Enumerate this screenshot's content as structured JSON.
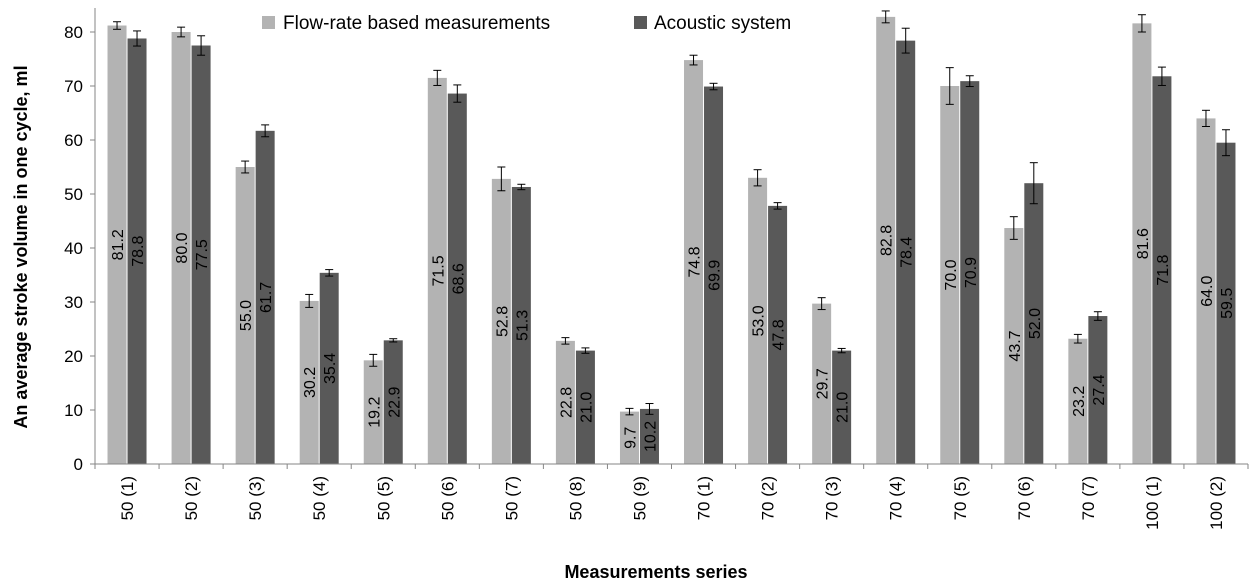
{
  "chart_data": {
    "type": "bar",
    "xlabel": "Measurements series",
    "ylabel": "An average stroke volume in one cycle, ml",
    "ylim": [
      0,
      85
    ],
    "yticks": [
      0,
      10,
      20,
      30,
      40,
      50,
      60,
      70,
      80
    ],
    "grid": false,
    "legend_position": "top",
    "categories": [
      "50 (1)",
      "50 (2)",
      "50 (3)",
      "50 (4)",
      "50 (5)",
      "50 (6)",
      "50 (7)",
      "50 (8)",
      "50 (9)",
      "70 (1)",
      "70 (2)",
      "70 (3)",
      "70 (4)",
      "70 (5)",
      "70 (6)",
      "70 (7)",
      "100 (1)",
      "100 (2)"
    ],
    "series": [
      {
        "name": "Flow-rate based measurements",
        "color": "#b3b3b3",
        "values": [
          81.2,
          80.0,
          55.0,
          30.2,
          19.2,
          71.5,
          52.8,
          22.8,
          9.7,
          74.8,
          53.0,
          29.7,
          82.8,
          70.0,
          43.7,
          23.2,
          81.6,
          64.0
        ],
        "labels": [
          "81.2",
          "80.0",
          "55.0",
          "30.2",
          "19.2",
          "71.5",
          "52.8",
          "22.8",
          "9.7",
          "74.8",
          "53.0",
          "29.7",
          "82.8",
          "70.0",
          "43.7",
          "23.2",
          "81.6",
          "64.0"
        ],
        "errors": [
          0.7,
          0.9,
          1.1,
          1.2,
          1.1,
          1.4,
          2.2,
          0.6,
          0.6,
          0.9,
          1.5,
          1.1,
          1.1,
          3.4,
          2.1,
          0.8,
          1.6,
          1.5
        ]
      },
      {
        "name": "Acoustic system",
        "color": "#595959",
        "values": [
          78.8,
          77.5,
          61.7,
          35.4,
          22.9,
          68.6,
          51.3,
          21.0,
          10.2,
          69.9,
          47.8,
          21.0,
          78.4,
          70.9,
          52.0,
          27.4,
          71.8,
          59.5
        ],
        "labels": [
          "78.8",
          "77.5",
          "61.7",
          "35.4",
          "22.9",
          "68.6",
          "51.3",
          "21.0",
          "10.2",
          "69.9",
          "47.8",
          "21.0",
          "78.4",
          "70.9",
          "52.0",
          "27.4",
          "71.8",
          "59.5"
        ],
        "errors": [
          1.4,
          1.8,
          1.1,
          0.6,
          0.3,
          1.6,
          0.5,
          0.5,
          1.0,
          0.6,
          0.6,
          0.4,
          2.3,
          1.0,
          3.8,
          0.8,
          1.7,
          2.4
        ]
      }
    ]
  }
}
